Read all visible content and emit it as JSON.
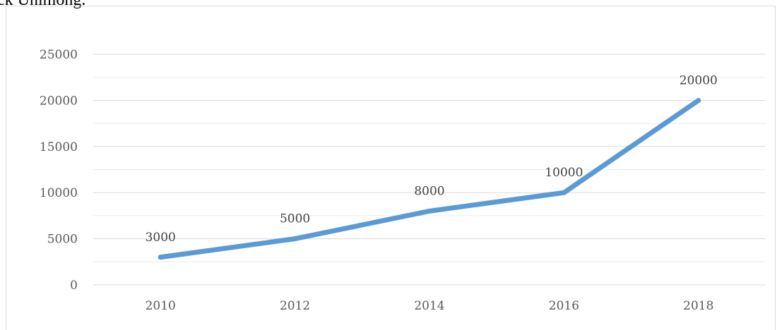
{
  "caption": "ck Unimong.",
  "chart_data": {
    "type": "line",
    "title": "",
    "xlabel": "",
    "ylabel": "",
    "categories": [
      "2010",
      "2012",
      "2014",
      "2016",
      "2018"
    ],
    "series": [
      {
        "values": [
          3000,
          5000,
          8000,
          10000,
          20000
        ],
        "color": "#5b9bd5"
      }
    ],
    "ylim": [
      0,
      25000
    ],
    "y_ticks": [
      0,
      5000,
      10000,
      15000,
      20000,
      25000
    ],
    "data_labels": [
      "3000",
      "5000",
      "8000",
      "10000",
      "20000"
    ],
    "grid": true,
    "legend": "none"
  }
}
